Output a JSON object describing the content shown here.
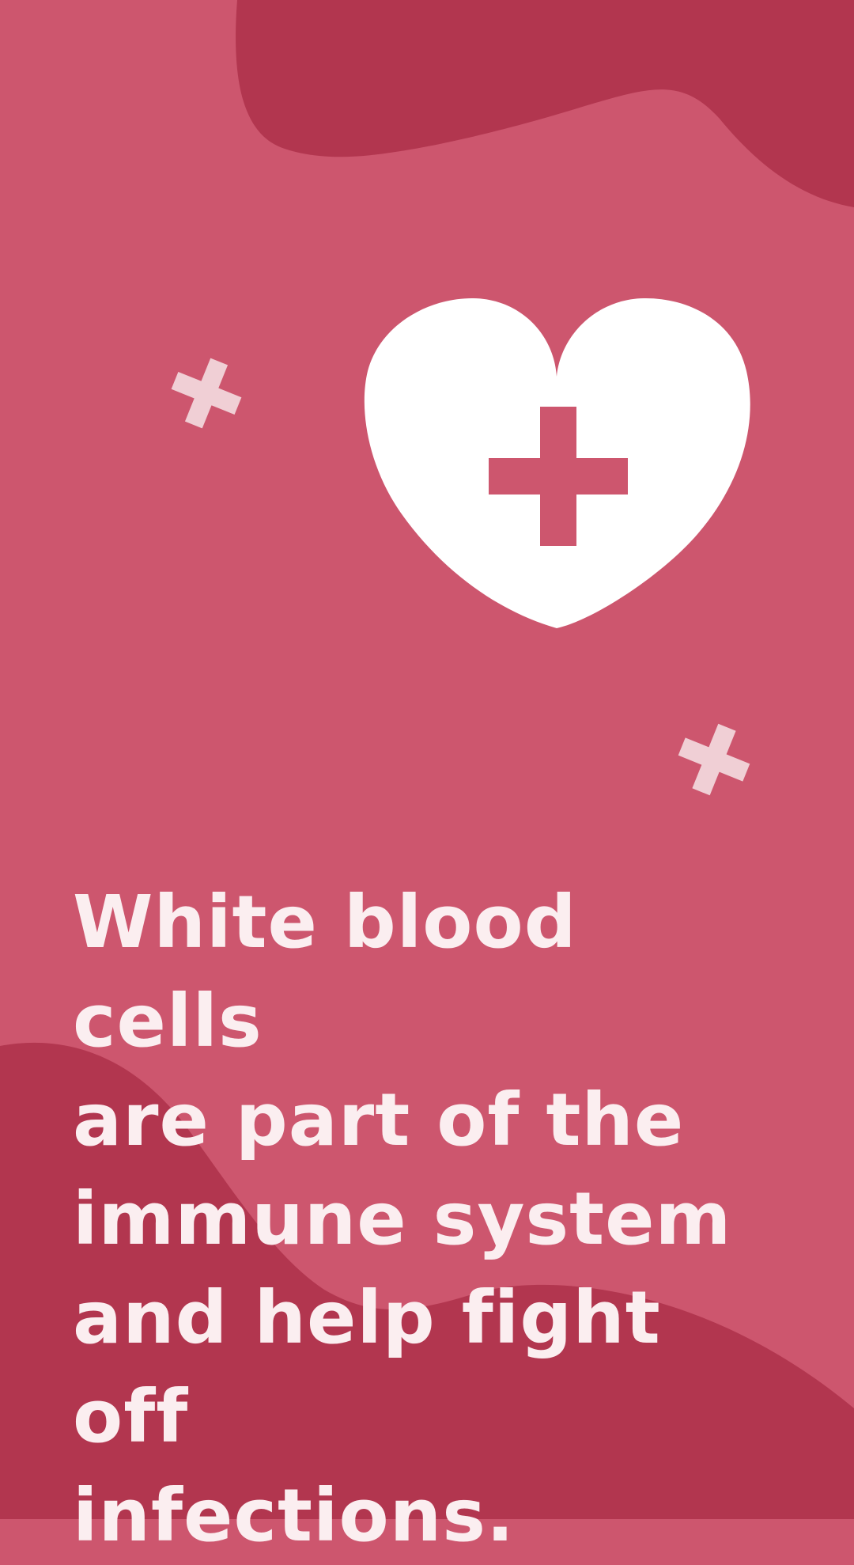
{
  "colors": {
    "background": "#cd566e",
    "blob": "#b2364f",
    "heart": "#ffffff",
    "heart_cross": "#cd566e",
    "sparkle": "#f0cfd5",
    "text": "#fbeef0"
  },
  "icons": {
    "heart": "heart-with-medical-cross",
    "sparkles": [
      "medical-cross",
      "medical-cross"
    ]
  },
  "message": {
    "line1": "White blood cells",
    "line2": "are part of the",
    "line3": "immune system",
    "line4": "and help fight off",
    "line5": "infections."
  }
}
